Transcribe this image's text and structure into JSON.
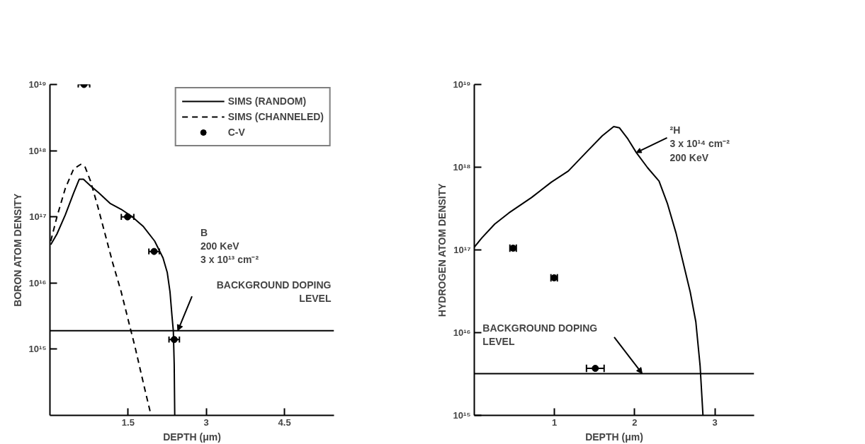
{
  "chart_data": [
    {
      "type": "line",
      "xlabel": "DEPTH (μm)",
      "ylabel": "BORON ATOM DENSITY",
      "xlim": [
        0,
        5.45
      ],
      "xticks": [
        1.5,
        3,
        4.5
      ],
      "ylim": [
        100000000000000.0,
        1e+19
      ],
      "yticks": [
        {
          "value": 1000000000000000.0,
          "label": "10¹⁵"
        },
        {
          "value": 1e+16,
          "label": "10¹⁶"
        },
        {
          "value": 1e+17,
          "label": "10¹⁷"
        },
        {
          "value": 1e+18,
          "label": "10¹⁸"
        },
        {
          "value": 1e+19,
          "label": "10¹⁹"
        }
      ],
      "log": "y",
      "grid": false,
      "legend": "top right",
      "series": [
        {
          "name": "SIMS (RANDOM)",
          "color": "#000000",
          "line_style": "solid",
          "x": [
            0.016,
            0.134,
            0.295,
            0.455,
            0.562,
            0.643,
            0.777,
            0.937,
            1.152,
            1.366,
            1.58,
            1.794,
            2.009,
            2.169,
            2.25,
            2.303,
            2.341,
            2.367,
            2.384,
            2.394
          ],
          "values": [
            3.8e+16,
            5.5e+16,
            1.07e+17,
            2.3e+17,
            3.7e+17,
            3.7e+17,
            2.95e+17,
            2.3e+17,
            1.6e+17,
            1.3e+17,
            1e+17,
            7.1e+16,
            4.3e+16,
            2.4e+16,
            1.45e+16,
            7400000000000000.0,
            3200000000000000.0,
            1900000000000000.0,
            590000000000000.0,
            100000000000000.0
          ]
        },
        {
          "name": "SIMS (CHANNELED)",
          "color": "#000000",
          "line_style": "dashed",
          "x": [
            0.016,
            0.134,
            0.295,
            0.455,
            0.589,
            0.669,
            0.777,
            0.911,
            1.045,
            1.205,
            1.366,
            1.527,
            1.634,
            1.741,
            1.848,
            1.928
          ],
          "values": [
            4.3e+16,
            1e+17,
            2.7e+17,
            5.3e+17,
            6.2e+17,
            5.8e+17,
            3.5e+17,
            1.5e+17,
            6e+16,
            2e+16,
            7400000000000000.0,
            2300000000000000.0,
            1070000000000000.0,
            460000000000000.0,
            200000000000000.0,
            110000000000000.0
          ]
        },
        {
          "name": "C-V",
          "type": "scatter",
          "color": "#000000",
          "marker": "circle",
          "x": [
            0.653,
            1.489,
            1.998,
            2.384
          ],
          "values": [
            1e+19,
            1e+17,
            3e+16,
            1400000000000000.0
          ],
          "xerrors": [
            0.11,
            0.12,
            0.1,
            0.1
          ]
        }
      ],
      "ref_lines": [
        {
          "axis": "y",
          "value": 1900000000000000.0,
          "label": "BACKGROUND DOPING\nLEVEL",
          "color": "#000000"
        }
      ],
      "annotations": [
        "B\n200 KeV\n3 x 10¹³ cm⁻²"
      ]
    },
    {
      "type": "line",
      "xlabel": "DEPTH (μm)",
      "ylabel": "HYDROGEN ATOM DENSITY",
      "xlim": [
        0,
        3.49
      ],
      "xticks": [
        1,
        2,
        3
      ],
      "ylim": [
        1000000000000000.0,
        1e+19
      ],
      "yticks": [
        {
          "value": 1000000000000000.0,
          "label": "10¹⁵"
        },
        {
          "value": 1e+16,
          "label": "10¹⁶"
        },
        {
          "value": 1e+17,
          "label": "10¹⁷"
        },
        {
          "value": 1e+18,
          "label": "10¹⁸"
        },
        {
          "value": 1e+19,
          "label": "10¹⁹"
        }
      ],
      "log": "y",
      "grid": false,
      "series": [
        {
          "color": "#000000",
          "line_style": "solid",
          "x": [
            0,
            0.095,
            0.254,
            0.431,
            0.714,
            0.961,
            1.173,
            1.42,
            1.597,
            1.739,
            1.809,
            1.915,
            2.021,
            2.163,
            2.304,
            2.41,
            2.516,
            2.604,
            2.693,
            2.763,
            2.816,
            2.852
          ],
          "values": [
            1.08e+17,
            1.4e+17,
            2.05e+17,
            2.8e+17,
            4.3e+17,
            6.6e+17,
            9e+17,
            1.6e+18,
            2.4e+18,
            3.1e+18,
            3e+18,
            2.2e+18,
            1.5e+18,
            9.8e+17,
            6.8e+17,
            3.6e+17,
            1.6e+17,
            7.1e+16,
            3.1e+16,
            1.35e+16,
            4000000000000000.0,
            1000000000000000.0
          ]
        },
        {
          "type": "scatter",
          "color": "#000000",
          "marker": "circle",
          "x": [
            0.484,
            0.996,
            1.509
          ],
          "values": [
            1.05e+17,
            4.6e+16,
            3700000000000000.0
          ],
          "xerrors": [
            0.04,
            0.04,
            0.11
          ]
        }
      ],
      "ref_lines": [
        {
          "axis": "y",
          "value": 3200000000000000.0,
          "label": "BACKGROUND DOPING\nLEVEL",
          "color": "#000000"
        }
      ],
      "annotations": [
        {
          "text": "²H\n3 x 10¹⁴ cm⁻²\n200 KeV",
          "x": 2.02,
          "y": 1.5e+18
        }
      ]
    }
  ]
}
